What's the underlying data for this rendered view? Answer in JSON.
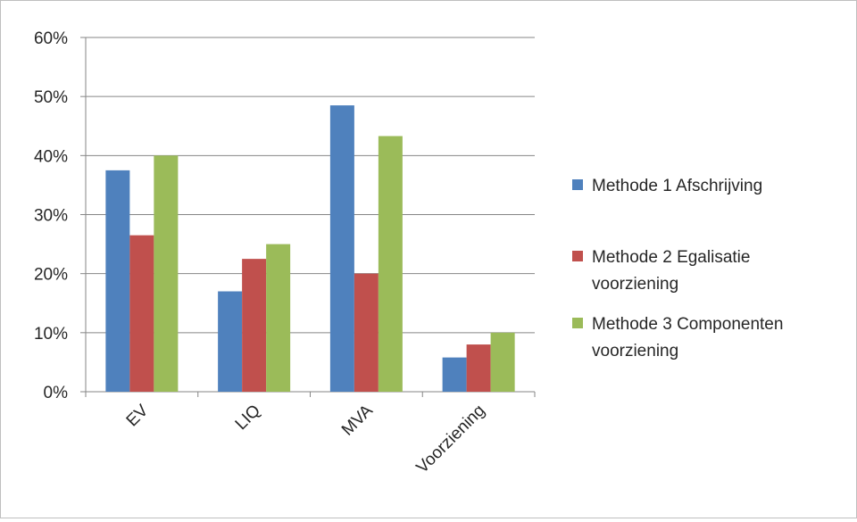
{
  "chart_data": {
    "type": "bar",
    "title": "",
    "xlabel": "",
    "ylabel": "",
    "categories": [
      "EV",
      "LIQ",
      "MVA",
      "Voorziening"
    ],
    "series": [
      {
        "name": "Methode 1 Afschrijving",
        "color": "#4f81bd",
        "values": [
          37.5,
          17.0,
          48.5,
          5.8
        ]
      },
      {
        "name": "Methode 2 Egalisatie voorziening",
        "color": "#c0504d",
        "values": [
          26.5,
          22.5,
          20.0,
          8.0
        ]
      },
      {
        "name": "Methode 3 Componenten voorziening",
        "color": "#9bbb59",
        "values": [
          40.0,
          25.0,
          43.3,
          10.0
        ]
      }
    ],
    "ylim": [
      0,
      60
    ],
    "yticks": [
      0,
      10,
      20,
      30,
      40,
      50,
      60
    ],
    "ytick_labels": [
      "0%",
      "10%",
      "20%",
      "30%",
      "40%",
      "50%",
      "60%"
    ],
    "grid": true,
    "legend_position": "right"
  },
  "legend": {
    "items": [
      {
        "lines": [
          "Methode 1 Afschrijving"
        ]
      },
      {
        "lines": [
          "Methode 2 Egalisatie",
          "voorziening"
        ]
      },
      {
        "lines": [
          "Methode 3 Componenten",
          "voorziening"
        ]
      }
    ]
  }
}
